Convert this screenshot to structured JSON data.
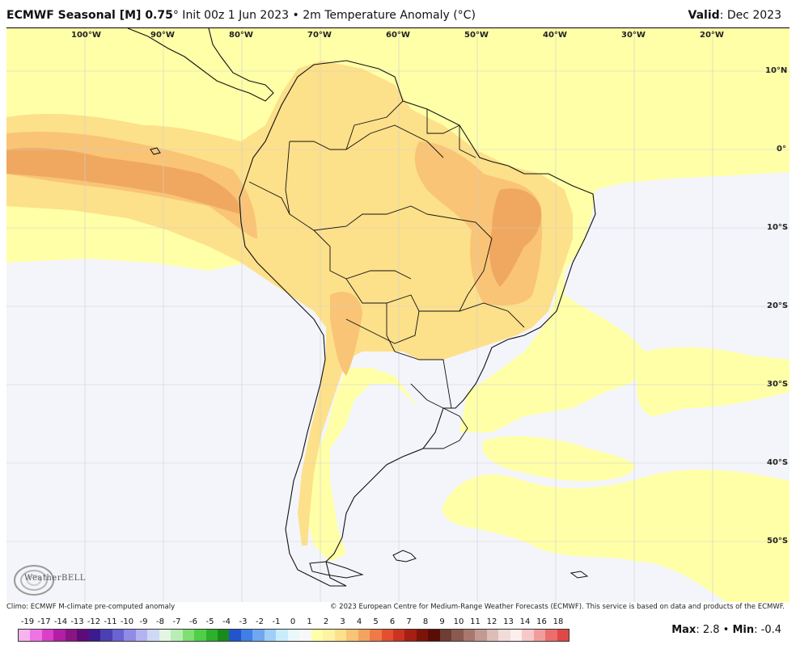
{
  "header": {
    "model": "ECMWF Seasonal [M] 0.75",
    "degree_symbol": "°",
    "init": " Init 00z 1 Jun 2023 • 2m Temperature Anomaly (°C)",
    "valid_label": "Valid",
    "valid_value": ": Dec 2023"
  },
  "map": {
    "lon_labels": [
      "100°W",
      "90°W",
      "80°W",
      "70°W",
      "60°W",
      "50°W",
      "40°W",
      "30°W",
      "20°W"
    ],
    "lat_labels": [
      "10°N",
      "0°",
      "10°S",
      "20°S",
      "30°S",
      "40°S",
      "50°S"
    ],
    "logo_text": "WeatherBELL"
  },
  "footer": {
    "climo": "Climo: ECMWF M-climate pre-computed anomaly",
    "copyright": "© 2023 European Centre for Medium-Range Weather Forecasts (ECMWF). This service is based on data and products of the ECMWF."
  },
  "legend": {
    "labels": [
      "-19",
      "-17",
      "-14",
      "-13",
      "-12",
      "-11",
      "-10",
      "-9",
      "-8",
      "-7",
      "-6",
      "-5",
      "-4",
      "-3",
      "-2",
      "-1",
      "0",
      "1",
      "2",
      "3",
      "4",
      "5",
      "6",
      "7",
      "8",
      "9",
      "10",
      "11",
      "12",
      "13",
      "14",
      "16",
      "18"
    ],
    "colors": [
      "#f7b3f0",
      "#ee74e3",
      "#d93fc9",
      "#b31ea5",
      "#8c1482",
      "#5e0b7a",
      "#3b1b8f",
      "#4a3fb3",
      "#6a63d2",
      "#8f8be6",
      "#b4b2f0",
      "#cdd9f5",
      "#e3f5e3",
      "#b8eeb3",
      "#7fdf72",
      "#4fcf48",
      "#2db02a",
      "#1a8a1a",
      "#2255cc",
      "#3f7fe6",
      "#6ea8f0",
      "#9fcff7",
      "#c8ecfb",
      "#e8f8fb",
      "#f8f8f8",
      "#ffffa8",
      "#fff2a0",
      "#fde08a",
      "#f9c475",
      "#f4a35e",
      "#ee7a45",
      "#e3502f",
      "#c93420",
      "#a51f13",
      "#7d1409",
      "#5a0c05",
      "#6e3d33",
      "#8a5a50",
      "#a8786f",
      "#c39a92",
      "#dcbdb7",
      "#f1dcd8",
      "#fbeeed",
      "#f7c8c8",
      "#f29d9d",
      "#ea6e6e",
      "#e04848"
    ]
  },
  "stats": {
    "max_label": "Max",
    "max_value": ": 2.8",
    "sep": " • ",
    "min_label": "Min",
    "min_value": ": -0.4"
  },
  "colors": {
    "ocean_neutral": "#f3f5fb",
    "anom_0_1": "#ffffa8",
    "anom_1_2": "#fde08a",
    "anom_2_3": "#f9c475",
    "anom_3_4": "#f0a860"
  }
}
